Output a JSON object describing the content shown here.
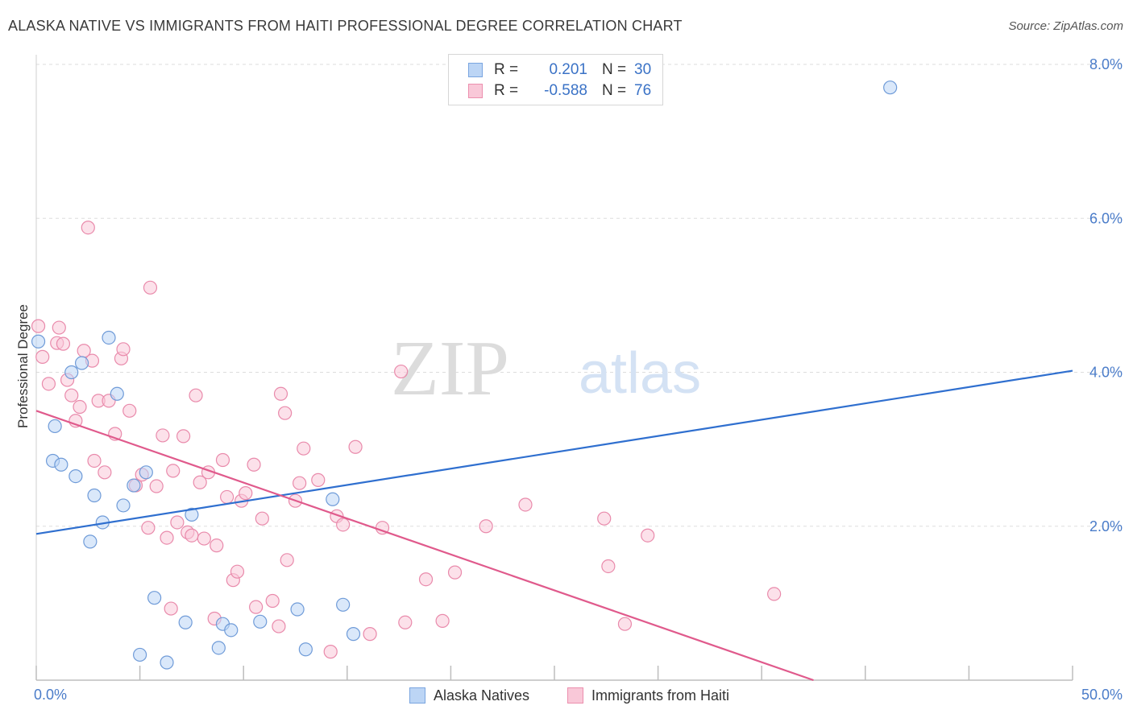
{
  "header": {
    "title": "ALASKA NATIVE VS IMMIGRANTS FROM HAITI PROFESSIONAL DEGREE CORRELATION CHART",
    "source": "Source: ZipAtlas.com"
  },
  "watermark": {
    "zip": "ZIP",
    "atlas": "atlas"
  },
  "legend": {
    "rows": [
      {
        "r_label": "R =",
        "r_value": "0.201",
        "n_label": "N =",
        "n_value": "30",
        "color": "#a9c7f0",
        "border": "#7aa5e0"
      },
      {
        "r_label": "R =",
        "r_value": "-0.588",
        "n_label": "N =",
        "n_value": "76",
        "color": "#f7bcd0",
        "border": "#ec8fae"
      }
    ]
  },
  "bottom_legend": [
    {
      "label": "Alaska Natives",
      "color": "#bcd5f5",
      "border": "#7aa5e0"
    },
    {
      "label": "Immigrants from Haiti",
      "color": "#f9c8d8",
      "border": "#ec8fae"
    }
  ],
  "chart_data": {
    "type": "scatter",
    "title": "ALASKA NATIVE VS IMMIGRANTS FROM HAITI PROFESSIONAL DEGREE CORRELATION CHART",
    "xlabel": "",
    "ylabel": "Professional Degree",
    "xlim": [
      0,
      50
    ],
    "ylim": [
      0,
      8
    ],
    "x_tick_labels": [
      "0.0%",
      "50.0%"
    ],
    "y_ticks": [
      2,
      4,
      6,
      8
    ],
    "y_tick_labels": [
      "2.0%",
      "4.0%",
      "6.0%",
      "8.0%"
    ],
    "grid": true,
    "legend_position": "top-center",
    "series": [
      {
        "name": "Alaska Natives",
        "color": "#a9c7f0",
        "line_color": "#2f6fcf",
        "trend": {
          "x": [
            0,
            50
          ],
          "y": [
            1.9,
            4.02
          ]
        },
        "points": [
          [
            0.1,
            4.4
          ],
          [
            0.8,
            2.85
          ],
          [
            0.9,
            3.3
          ],
          [
            1.2,
            2.8
          ],
          [
            1.7,
            4.0
          ],
          [
            1.9,
            2.65
          ],
          [
            2.2,
            4.12
          ],
          [
            2.6,
            1.8
          ],
          [
            2.8,
            2.4
          ],
          [
            3.2,
            2.05
          ],
          [
            3.5,
            4.45
          ],
          [
            3.9,
            3.72
          ],
          [
            4.2,
            2.27
          ],
          [
            4.7,
            2.53
          ],
          [
            5.0,
            0.33
          ],
          [
            5.3,
            2.7
          ],
          [
            5.7,
            1.07
          ],
          [
            6.3,
            0.23
          ],
          [
            7.2,
            0.75
          ],
          [
            7.5,
            2.15
          ],
          [
            8.8,
            0.42
          ],
          [
            9.0,
            0.73
          ],
          [
            9.4,
            0.65
          ],
          [
            10.8,
            0.76
          ],
          [
            12.6,
            0.92
          ],
          [
            13.0,
            0.4
          ],
          [
            14.3,
            2.35
          ],
          [
            14.8,
            0.98
          ],
          [
            15.3,
            0.6
          ],
          [
            41.2,
            7.7
          ]
        ]
      },
      {
        "name": "Immigrants from Haiti",
        "color": "#f7bcd0",
        "line_color": "#e05a8c",
        "trend": {
          "x": [
            0,
            37.5
          ],
          "y": [
            3.5,
            0.0
          ]
        },
        "points": [
          [
            0.1,
            4.6
          ],
          [
            0.3,
            4.2
          ],
          [
            0.6,
            3.85
          ],
          [
            1.0,
            4.38
          ],
          [
            1.1,
            4.58
          ],
          [
            1.3,
            4.37
          ],
          [
            1.5,
            3.9
          ],
          [
            1.7,
            3.7
          ],
          [
            1.9,
            3.37
          ],
          [
            2.1,
            3.55
          ],
          [
            2.3,
            4.28
          ],
          [
            2.5,
            5.88
          ],
          [
            2.7,
            4.15
          ],
          [
            2.8,
            2.85
          ],
          [
            3.0,
            3.63
          ],
          [
            3.3,
            2.7
          ],
          [
            3.5,
            3.63
          ],
          [
            3.8,
            3.2
          ],
          [
            4.1,
            4.18
          ],
          [
            4.2,
            4.3
          ],
          [
            4.5,
            3.5
          ],
          [
            4.8,
            2.53
          ],
          [
            5.1,
            2.67
          ],
          [
            5.4,
            1.98
          ],
          [
            5.5,
            5.1
          ],
          [
            5.8,
            2.52
          ],
          [
            6.1,
            3.18
          ],
          [
            6.3,
            1.85
          ],
          [
            6.5,
            0.93
          ],
          [
            6.6,
            2.72
          ],
          [
            6.8,
            2.05
          ],
          [
            7.1,
            3.17
          ],
          [
            7.3,
            1.92
          ],
          [
            7.5,
            1.88
          ],
          [
            7.7,
            3.7
          ],
          [
            7.9,
            2.57
          ],
          [
            8.1,
            1.84
          ],
          [
            8.3,
            2.7
          ],
          [
            8.6,
            0.8
          ],
          [
            8.7,
            1.75
          ],
          [
            9.0,
            2.86
          ],
          [
            9.2,
            2.38
          ],
          [
            9.5,
            1.3
          ],
          [
            9.7,
            1.41
          ],
          [
            9.9,
            2.33
          ],
          [
            10.1,
            2.43
          ],
          [
            10.5,
            2.8
          ],
          [
            10.6,
            0.95
          ],
          [
            10.9,
            2.1
          ],
          [
            11.4,
            1.03
          ],
          [
            11.7,
            0.7
          ],
          [
            11.8,
            3.72
          ],
          [
            12.0,
            3.47
          ],
          [
            12.1,
            1.56
          ],
          [
            12.5,
            2.33
          ],
          [
            12.7,
            2.56
          ],
          [
            12.9,
            3.01
          ],
          [
            13.6,
            2.6
          ],
          [
            14.2,
            0.37
          ],
          [
            14.5,
            2.13
          ],
          [
            14.8,
            2.02
          ],
          [
            15.4,
            3.03
          ],
          [
            16.1,
            0.6
          ],
          [
            16.7,
            1.98
          ],
          [
            17.6,
            4.01
          ],
          [
            17.8,
            0.75
          ],
          [
            18.8,
            1.31
          ],
          [
            19.6,
            0.77
          ],
          [
            20.2,
            1.4
          ],
          [
            21.7,
            2.0
          ],
          [
            23.6,
            2.28
          ],
          [
            27.4,
            2.1
          ],
          [
            27.6,
            1.48
          ],
          [
            28.4,
            0.73
          ],
          [
            29.5,
            1.88
          ],
          [
            35.6,
            1.12
          ]
        ]
      }
    ]
  }
}
